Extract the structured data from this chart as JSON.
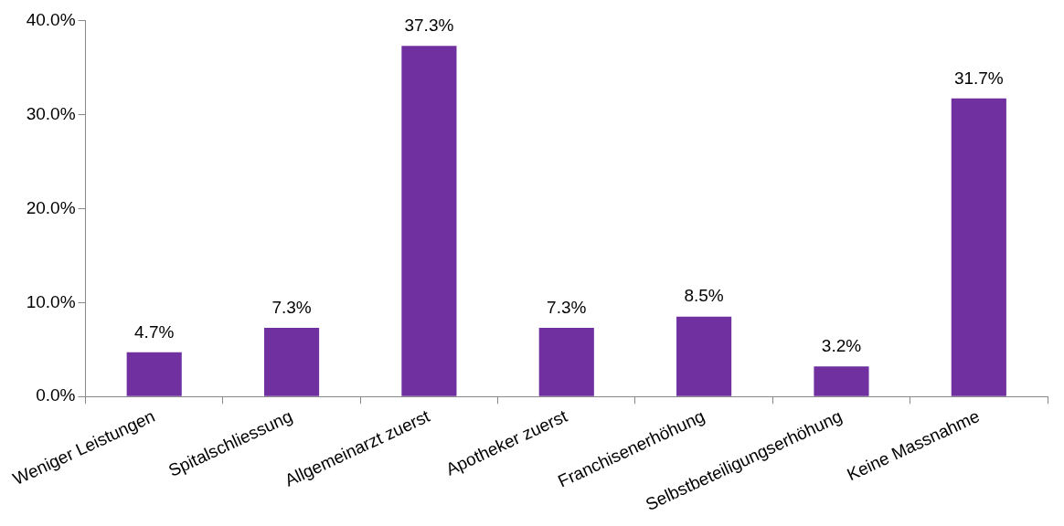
{
  "chart_data": {
    "type": "bar",
    "categories": [
      "Weniger Leistungen",
      "Spitalschliessung",
      "Allgemeinarzt zuerst",
      "Apotheker zuerst",
      "Franchisenerhöhung",
      "Selbstbeteiligungserhöhung",
      "Keine Massnahme"
    ],
    "values": [
      4.7,
      7.3,
      37.3,
      7.3,
      8.5,
      3.2,
      31.7
    ],
    "value_labels": [
      "4.7%",
      "7.3%",
      "37.3%",
      "7.3%",
      "8.5%",
      "3.2%",
      "31.7%"
    ],
    "color": "#7030a0",
    "ylim": [
      0,
      40
    ],
    "yticks": [
      {
        "value": 0,
        "label": "0.0%"
      },
      {
        "value": 10,
        "label": "10.0%"
      },
      {
        "value": 20,
        "label": "20.0%"
      },
      {
        "value": 30,
        "label": "30.0%"
      },
      {
        "value": 40,
        "label": "40.0%"
      }
    ],
    "grid": false,
    "legend": false
  }
}
